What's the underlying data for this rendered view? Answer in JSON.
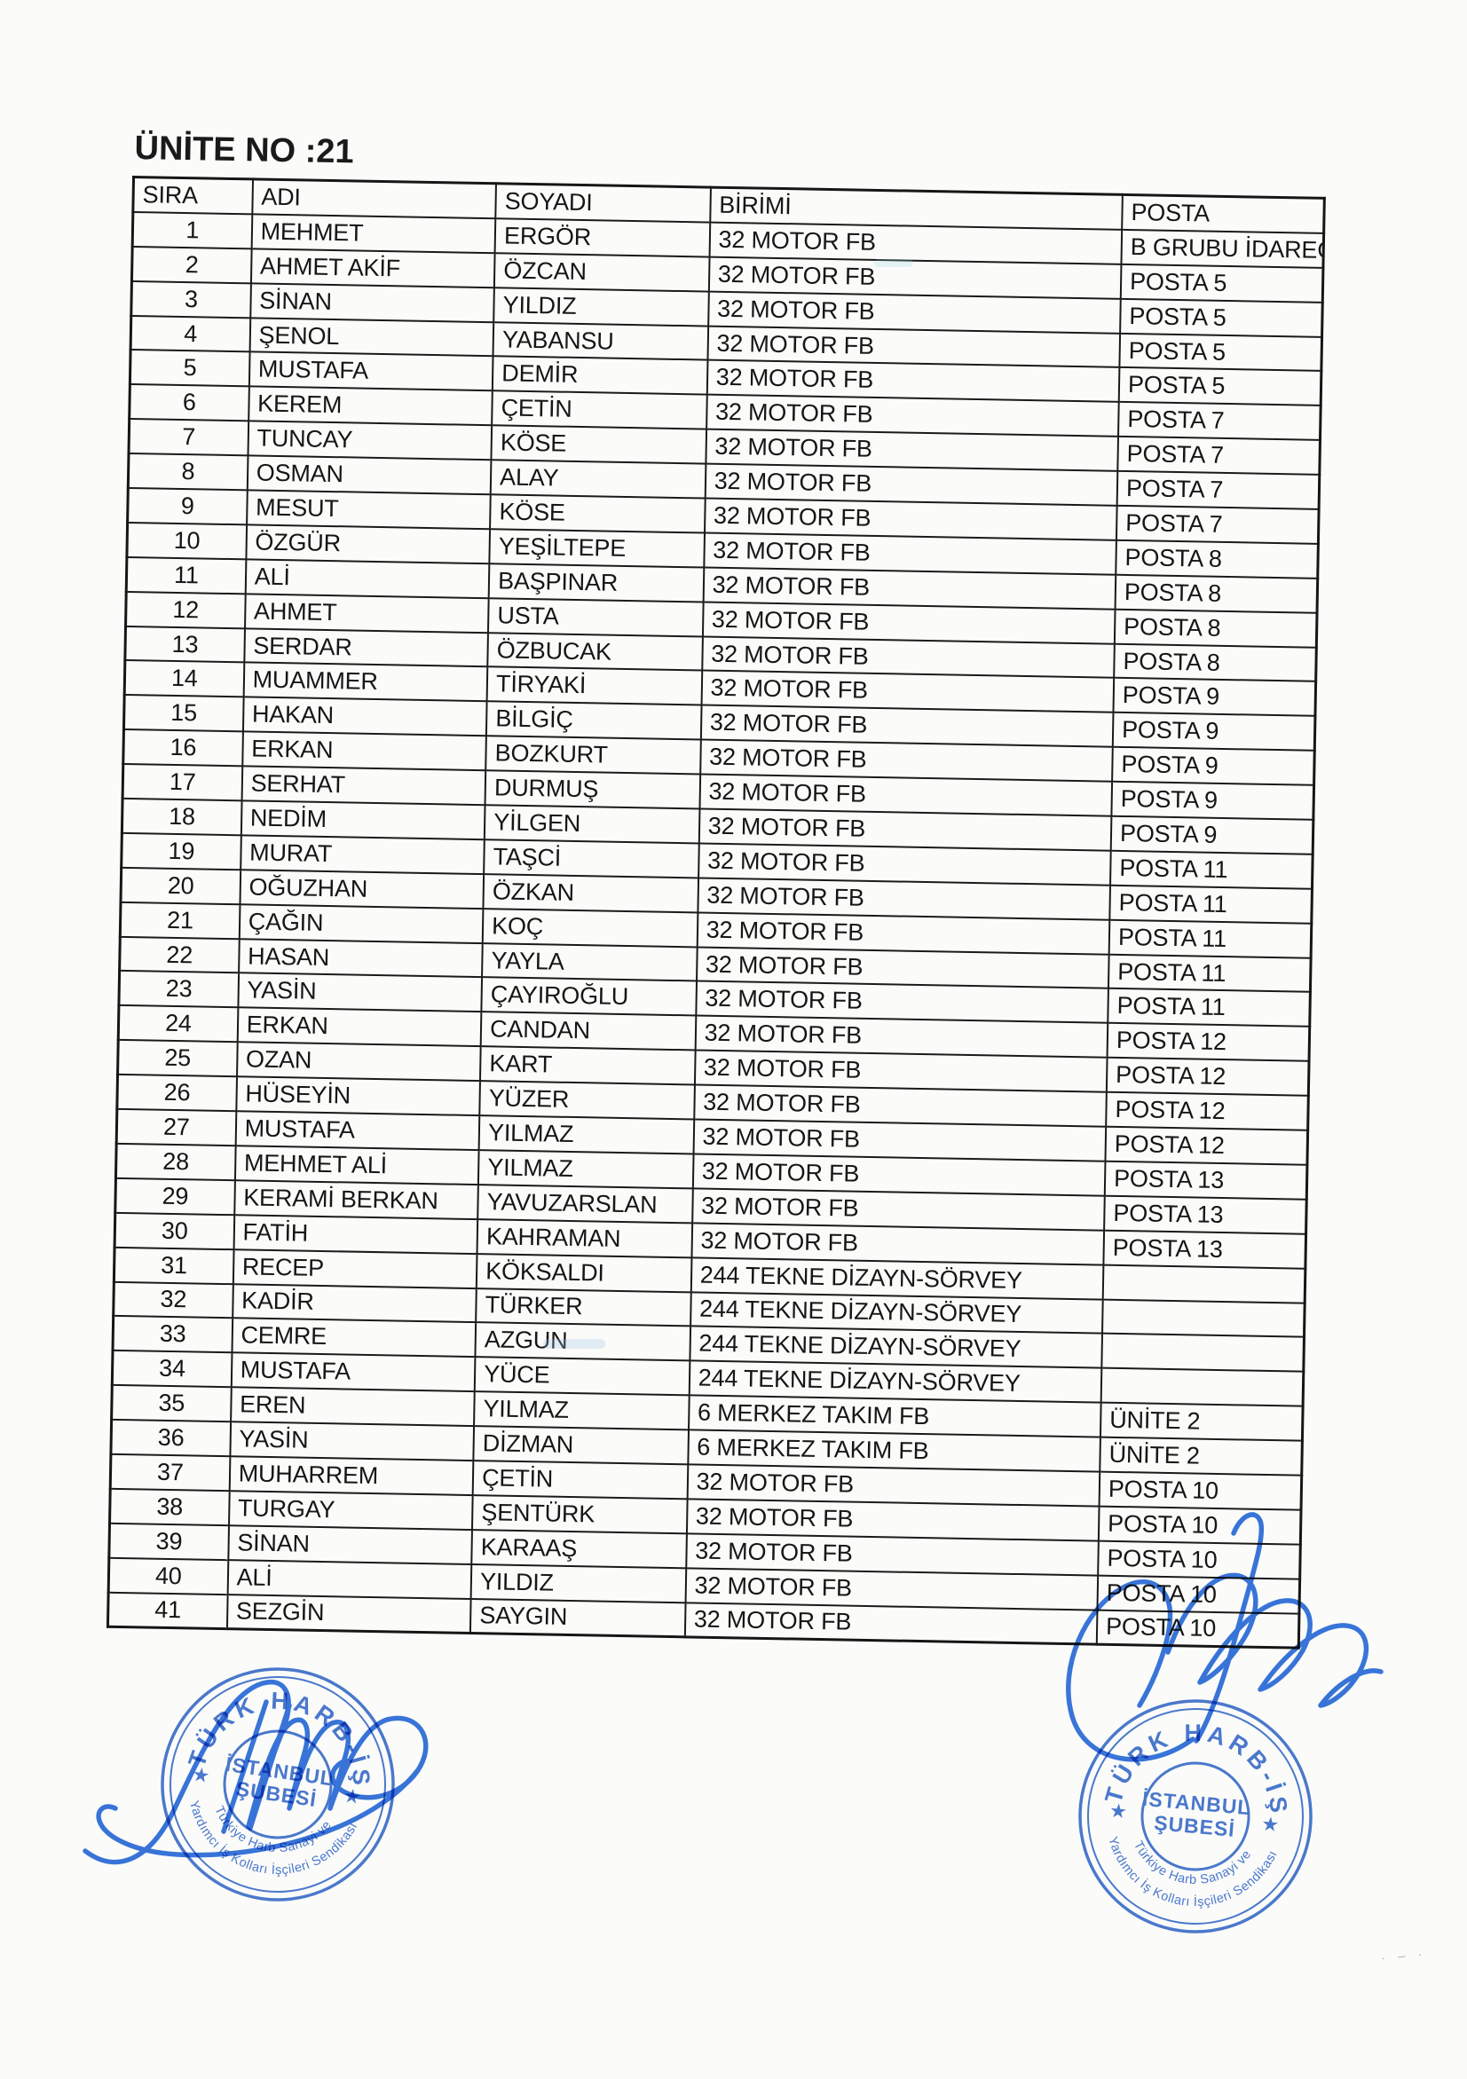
{
  "page": {
    "title": "ÜNİTE NO :21"
  },
  "table": {
    "columns": [
      "SIRA",
      "ADI",
      "SOYADI",
      "BİRİMİ",
      "POSTA"
    ],
    "column_keys": [
      "sira",
      "adi",
      "soyadi",
      "birimi",
      "posta"
    ],
    "rows": [
      [
        "1",
        "MEHMET",
        "ERGÖR",
        "32 MOTOR FB",
        "B GRUBU İDARECİ"
      ],
      [
        "2",
        "AHMET AKİF",
        "ÖZCAN",
        "32 MOTOR FB",
        "POSTA 5"
      ],
      [
        "3",
        "SİNAN",
        "YILDIZ",
        "32 MOTOR FB",
        "POSTA 5"
      ],
      [
        "4",
        "ŞENOL",
        "YABANSU",
        "32 MOTOR FB",
        "POSTA 5"
      ],
      [
        "5",
        "MUSTAFA",
        "DEMİR",
        "32 MOTOR FB",
        "POSTA 5"
      ],
      [
        "6",
        "KEREM",
        "ÇETİN",
        "32 MOTOR FB",
        "POSTA 7"
      ],
      [
        "7",
        "TUNCAY",
        "KÖSE",
        "32 MOTOR FB",
        "POSTA 7"
      ],
      [
        "8",
        "OSMAN",
        "ALAY",
        "32 MOTOR FB",
        "POSTA 7"
      ],
      [
        "9",
        "MESUT",
        "KÖSE",
        "32 MOTOR FB",
        "POSTA 7"
      ],
      [
        "10",
        "ÖZGÜR",
        "YEŞİLTEPE",
        "32 MOTOR FB",
        "POSTA 8"
      ],
      [
        "11",
        "ALİ",
        "BAŞPINAR",
        "32 MOTOR FB",
        "POSTA 8"
      ],
      [
        "12",
        "AHMET",
        "USTA",
        "32 MOTOR FB",
        "POSTA 8"
      ],
      [
        "13",
        "SERDAR",
        "ÖZBUCAK",
        "32 MOTOR FB",
        "POSTA 8"
      ],
      [
        "14",
        "MUAMMER",
        "TİRYAKİ",
        "32 MOTOR FB",
        "POSTA 9"
      ],
      [
        "15",
        "HAKAN",
        "BİLGİÇ",
        "32 MOTOR FB",
        "POSTA 9"
      ],
      [
        "16",
        "ERKAN",
        "BOZKURT",
        "32 MOTOR FB",
        "POSTA 9"
      ],
      [
        "17",
        "SERHAT",
        "DURMUŞ",
        "32 MOTOR FB",
        "POSTA 9"
      ],
      [
        "18",
        "NEDİM",
        "YİLGEN",
        "32 MOTOR FB",
        "POSTA 9"
      ],
      [
        "19",
        "MURAT",
        "TAŞCİ",
        "32 MOTOR FB",
        "POSTA 11"
      ],
      [
        "20",
        "OĞUZHAN",
        "ÖZKAN",
        "32 MOTOR FB",
        "POSTA 11"
      ],
      [
        "21",
        "ÇAĞIN",
        "KOÇ",
        "32 MOTOR FB",
        "POSTA 11"
      ],
      [
        "22",
        "HASAN",
        "YAYLA",
        "32 MOTOR FB",
        "POSTA 11"
      ],
      [
        "23",
        "YASİN",
        "ÇAYIROĞLU",
        "32 MOTOR FB",
        "POSTA 11"
      ],
      [
        "24",
        "ERKAN",
        "CANDAN",
        "32 MOTOR FB",
        "POSTA 12"
      ],
      [
        "25",
        "OZAN",
        "KART",
        "32 MOTOR FB",
        "POSTA 12"
      ],
      [
        "26",
        "HÜSEYİN",
        "YÜZER",
        "32 MOTOR FB",
        "POSTA 12"
      ],
      [
        "27",
        "MUSTAFA",
        "YILMAZ",
        "32 MOTOR FB",
        "POSTA 12"
      ],
      [
        "28",
        "MEHMET ALİ",
        "YILMAZ",
        "32 MOTOR FB",
        "POSTA 13"
      ],
      [
        "29",
        "KERAMİ BERKAN",
        "YAVUZARSLAN",
        "32 MOTOR FB",
        "POSTA 13"
      ],
      [
        "30",
        "FATİH",
        "KAHRAMAN",
        "32 MOTOR FB",
        "POSTA 13"
      ],
      [
        "31",
        "RECEP",
        "KÖKSALDI",
        "244 TEKNE DİZAYN-SÖRVEY",
        ""
      ],
      [
        "32",
        "KADİR",
        "TÜRKER",
        "244 TEKNE DİZAYN-SÖRVEY",
        ""
      ],
      [
        "33",
        "CEMRE",
        "AZGUN",
        "244 TEKNE DİZAYN-SÖRVEY",
        ""
      ],
      [
        "34",
        "MUSTAFA",
        "YÜCE",
        "244 TEKNE DİZAYN-SÖRVEY",
        ""
      ],
      [
        "35",
        "EREN",
        "YILMAZ",
        "6 MERKEZ TAKIM FB",
        "ÜNİTE 2"
      ],
      [
        "36",
        "YASİN",
        "DİZMAN",
        "6 MERKEZ TAKIM FB",
        "ÜNİTE 2"
      ],
      [
        "37",
        "MUHARREM",
        "ÇETİN",
        "32 MOTOR FB",
        "POSTA 10"
      ],
      [
        "38",
        "TURGAY",
        "ŞENTÜRK",
        "32 MOTOR FB",
        "POSTA 10"
      ],
      [
        "39",
        "SİNAN",
        "KARAAŞ",
        "32 MOTOR FB",
        "POSTA 10"
      ],
      [
        "40",
        "ALİ",
        "YILDIZ",
        "32 MOTOR FB",
        "POSTA 10"
      ],
      [
        "41",
        "SEZGİN",
        "SAYGIN",
        "32 MOTOR FB",
        "POSTA 10"
      ]
    ]
  },
  "stamp": {
    "org_top": "TÜRK HARB-İŞ",
    "center_line1": "İSTANBUL",
    "center_line2": "ŞUBESİ",
    "bottom_inner": "Türkiye Harb Sanayi ve",
    "bottom_outer": "Yardımcı İş Kolları İşçileri Sendikası",
    "star": "★",
    "ink_color": "#2b62c9",
    "signature_ink_color": "#2f6fdd"
  },
  "corner_marks": "· – ·"
}
